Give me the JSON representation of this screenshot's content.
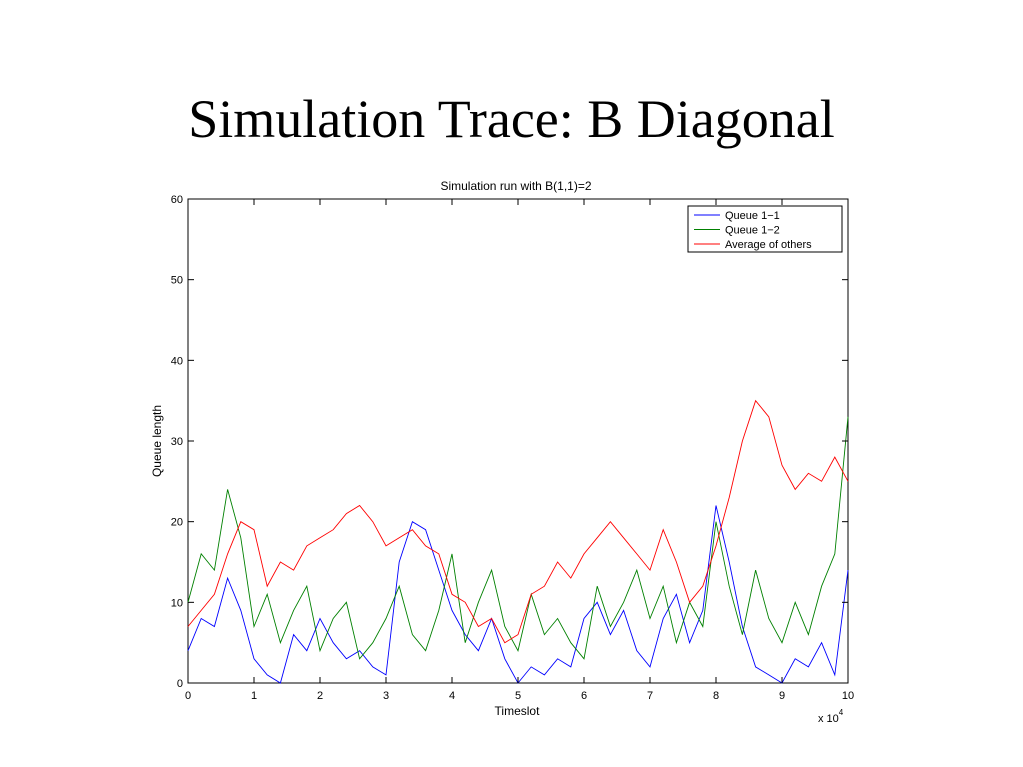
{
  "slide": {
    "title": "Simulation Trace: B Diagonal"
  },
  "chart_data": {
    "type": "line",
    "title": "Simulation run with B(1,1)=2",
    "xlabel": "Timeslot",
    "ylabel": "Queue length",
    "x_multiplier_label": "x 10",
    "x_multiplier_exponent": "4",
    "xlim": [
      0,
      10
    ],
    "ylim": [
      0,
      60
    ],
    "xticks": [
      "0",
      "1",
      "2",
      "3",
      "4",
      "5",
      "6",
      "7",
      "8",
      "9",
      "10"
    ],
    "yticks": [
      "0",
      "10",
      "20",
      "30",
      "40",
      "50",
      "60"
    ],
    "grid": false,
    "legend_position": "top-right",
    "x": [
      0,
      0.2,
      0.4,
      0.6,
      0.8,
      1.0,
      1.2,
      1.4,
      1.6,
      1.8,
      2.0,
      2.2,
      2.4,
      2.6,
      2.8,
      3.0,
      3.2,
      3.4,
      3.6,
      3.8,
      4.0,
      4.2,
      4.4,
      4.6,
      4.8,
      5.0,
      5.2,
      5.4,
      5.6,
      5.8,
      6.0,
      6.2,
      6.4,
      6.6,
      6.8,
      7.0,
      7.2,
      7.4,
      7.6,
      7.8,
      8.0,
      8.2,
      8.4,
      8.6,
      8.8,
      9.0,
      9.2,
      9.4,
      9.6,
      9.8,
      10.0
    ],
    "series": [
      {
        "name": "Queue 1−1",
        "color": "#0000ff",
        "values": [
          4,
          8,
          7,
          13,
          9,
          3,
          1,
          0,
          6,
          4,
          8,
          5,
          3,
          4,
          2,
          1,
          15,
          20,
          19,
          14,
          9,
          6,
          4,
          8,
          3,
          0,
          2,
          1,
          3,
          2,
          8,
          10,
          6,
          9,
          4,
          2,
          8,
          11,
          5,
          9,
          22,
          15,
          7,
          2,
          1,
          0,
          3,
          2,
          5,
          1,
          14
        ]
      },
      {
        "name": "Queue 1−2",
        "color": "#008000",
        "values": [
          10,
          16,
          14,
          24,
          18,
          7,
          11,
          5,
          9,
          12,
          4,
          8,
          10,
          3,
          5,
          8,
          12,
          6,
          4,
          9,
          16,
          5,
          10,
          14,
          7,
          4,
          11,
          6,
          8,
          5,
          3,
          12,
          7,
          10,
          14,
          8,
          12,
          5,
          10,
          7,
          20,
          12,
          6,
          14,
          8,
          5,
          10,
          6,
          12,
          16,
          33
        ]
      },
      {
        "name": "Average of others",
        "color": "#ff0000",
        "values": [
          7,
          9,
          11,
          16,
          20,
          19,
          12,
          15,
          14,
          17,
          18,
          19,
          21,
          22,
          20,
          17,
          18,
          19,
          17,
          16,
          11,
          10,
          7,
          8,
          5,
          6,
          11,
          12,
          15,
          13,
          16,
          18,
          20,
          18,
          16,
          14,
          19,
          15,
          10,
          12,
          17,
          23,
          30,
          35,
          33,
          27,
          24,
          26,
          25,
          28,
          25
        ]
      }
    ]
  }
}
